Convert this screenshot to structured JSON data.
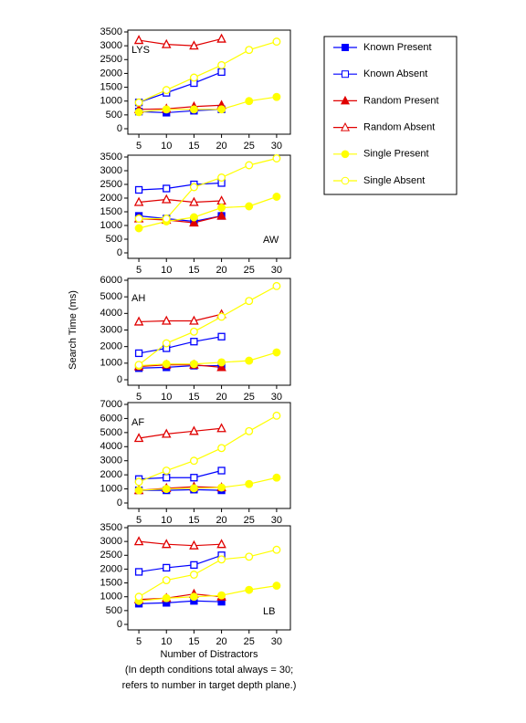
{
  "chart_data": [
    {
      "type": "line",
      "annotation": "LYS",
      "annotation_corner": "top-left",
      "x": [
        5,
        10,
        15,
        20,
        25,
        30
      ],
      "xlim": [
        3,
        32.5
      ],
      "xticks": [
        5,
        10,
        15,
        20,
        25,
        30
      ],
      "ylim": [
        0,
        3500
      ],
      "yticks": [
        0,
        500,
        1000,
        1500,
        2000,
        2500,
        3000,
        3500
      ],
      "series": [
        {
          "name": "Known Present",
          "color": "#0000ff",
          "marker": "square",
          "filled": true,
          "values": [
            620,
            580,
            650,
            700,
            null,
            null
          ]
        },
        {
          "name": "Known Absent",
          "color": "#0000ff",
          "marker": "square",
          "filled": false,
          "values": [
            950,
            1300,
            1650,
            2050,
            null,
            null
          ]
        },
        {
          "name": "Random Present",
          "color": "#e00000",
          "marker": "triangle",
          "filled": true,
          "values": [
            700,
            720,
            800,
            850,
            null,
            null
          ]
        },
        {
          "name": "Random Absent",
          "color": "#e00000",
          "marker": "triangle",
          "filled": false,
          "values": [
            3200,
            3050,
            3000,
            3250,
            null,
            null
          ]
        },
        {
          "name": "Single Present",
          "color": "#ffff00",
          "marker": "circle",
          "filled": true,
          "values": [
            600,
            700,
            700,
            700,
            1000,
            1150
          ]
        },
        {
          "name": "Single Absent",
          "color": "#ffff00",
          "marker": "circle",
          "filled": false,
          "values": [
            950,
            1400,
            1850,
            2300,
            2850,
            3150
          ]
        }
      ]
    },
    {
      "type": "line",
      "annotation": "AW",
      "annotation_corner": "bottom-right",
      "x": [
        5,
        10,
        15,
        20,
        25,
        30
      ],
      "xlim": [
        3,
        32.5
      ],
      "xticks": [
        5,
        10,
        15,
        20,
        25,
        30
      ],
      "ylim": [
        0,
        3500
      ],
      "yticks": [
        0,
        500,
        1000,
        1500,
        2000,
        2500,
        3000,
        3500
      ],
      "series": [
        {
          "name": "Known Present",
          "color": "#0000ff",
          "marker": "square",
          "filled": true,
          "values": [
            1350,
            1250,
            1150,
            1350,
            null,
            null
          ]
        },
        {
          "name": "Known Absent",
          "color": "#0000ff",
          "marker": "square",
          "filled": false,
          "values": [
            2300,
            2350,
            2500,
            2550,
            null,
            null
          ]
        },
        {
          "name": "Random Present",
          "color": "#e00000",
          "marker": "triangle",
          "filled": true,
          "values": [
            1250,
            1200,
            1100,
            1350,
            null,
            null
          ]
        },
        {
          "name": "Random Absent",
          "color": "#e00000",
          "marker": "triangle",
          "filled": false,
          "values": [
            1850,
            1950,
            1850,
            1900,
            null,
            null
          ]
        },
        {
          "name": "Single Present",
          "color": "#ffff00",
          "marker": "circle",
          "filled": true,
          "values": [
            900,
            1150,
            1300,
            1650,
            1700,
            2050
          ]
        },
        {
          "name": "Single Absent",
          "color": "#ffff00",
          "marker": "circle",
          "filled": false,
          "values": [
            1250,
            1250,
            2400,
            2750,
            3200,
            3450
          ]
        }
      ]
    },
    {
      "type": "line",
      "annotation": "AH",
      "annotation_corner": "top-left",
      "ylabel": "Search Time (ms)",
      "x": [
        5,
        10,
        15,
        20,
        25,
        30
      ],
      "xlim": [
        3,
        32.5
      ],
      "xticks": [
        5,
        10,
        15,
        20,
        25,
        30
      ],
      "ylim": [
        0,
        6000
      ],
      "yticks": [
        0,
        1000,
        2000,
        3000,
        4000,
        5000,
        6000
      ],
      "series": [
        {
          "name": "Known Present",
          "color": "#0000ff",
          "marker": "square",
          "filled": true,
          "values": [
            700,
            750,
            850,
            850,
            null,
            null
          ]
        },
        {
          "name": "Known Absent",
          "color": "#0000ff",
          "marker": "square",
          "filled": false,
          "values": [
            1600,
            1900,
            2300,
            2600,
            null,
            null
          ]
        },
        {
          "name": "Random Present",
          "color": "#e00000",
          "marker": "triangle",
          "filled": true,
          "values": [
            800,
            900,
            900,
            750,
            null,
            null
          ]
        },
        {
          "name": "Random Absent",
          "color": "#e00000",
          "marker": "triangle",
          "filled": false,
          "values": [
            3500,
            3550,
            3550,
            3950,
            null,
            null
          ]
        },
        {
          "name": "Single Present",
          "color": "#ffff00",
          "marker": "circle",
          "filled": true,
          "values": [
            850,
            950,
            950,
            1050,
            1150,
            1650
          ]
        },
        {
          "name": "Single Absent",
          "color": "#ffff00",
          "marker": "circle",
          "filled": false,
          "values": [
            900,
            2200,
            2900,
            3800,
            4750,
            5650
          ]
        }
      ]
    },
    {
      "type": "line",
      "annotation": "AF",
      "annotation_corner": "top-left",
      "x": [
        5,
        10,
        15,
        20,
        25,
        30
      ],
      "xlim": [
        3,
        32.5
      ],
      "xticks": [
        5,
        10,
        15,
        20,
        25,
        30
      ],
      "ylim": [
        0,
        7000
      ],
      "yticks": [
        0,
        1000,
        2000,
        3000,
        4000,
        5000,
        6000,
        7000
      ],
      "series": [
        {
          "name": "Known Present",
          "color": "#0000ff",
          "marker": "square",
          "filled": true,
          "values": [
            900,
            900,
            950,
            900,
            null,
            null
          ]
        },
        {
          "name": "Known Absent",
          "color": "#0000ff",
          "marker": "square",
          "filled": false,
          "values": [
            1700,
            1800,
            1800,
            2300,
            null,
            null
          ]
        },
        {
          "name": "Random Present",
          "color": "#e00000",
          "marker": "triangle",
          "filled": true,
          "values": [
            900,
            1050,
            1150,
            1100,
            null,
            null
          ]
        },
        {
          "name": "Random Absent",
          "color": "#e00000",
          "marker": "triangle",
          "filled": false,
          "values": [
            4600,
            4900,
            5100,
            5300,
            null,
            null
          ]
        },
        {
          "name": "Single Present",
          "color": "#ffff00",
          "marker": "circle",
          "filled": true,
          "values": [
            900,
            1000,
            1050,
            1100,
            1350,
            1800
          ]
        },
        {
          "name": "Single Absent",
          "color": "#ffff00",
          "marker": "circle",
          "filled": false,
          "values": [
            1500,
            2300,
            3000,
            3900,
            5100,
            6200
          ]
        }
      ]
    },
    {
      "type": "line",
      "annotation": "LB",
      "annotation_corner": "bottom-right",
      "xlabel": "Number of Distractors",
      "notes": [
        "(In depth conditions total always = 30;",
        "refers to number in target depth plane.)"
      ],
      "x": [
        5,
        10,
        15,
        20,
        25,
        30
      ],
      "xlim": [
        3,
        32.5
      ],
      "xticks": [
        5,
        10,
        15,
        20,
        25,
        30
      ],
      "ylim": [
        0,
        3500
      ],
      "yticks": [
        0,
        500,
        1000,
        1500,
        2000,
        2500,
        3000,
        3500
      ],
      "series": [
        {
          "name": "Known Present",
          "color": "#0000ff",
          "marker": "square",
          "filled": true,
          "values": [
            750,
            780,
            850,
            820,
            null,
            null
          ]
        },
        {
          "name": "Known Absent",
          "color": "#0000ff",
          "marker": "square",
          "filled": false,
          "values": [
            1900,
            2050,
            2150,
            2500,
            null,
            null
          ]
        },
        {
          "name": "Random Present",
          "color": "#e00000",
          "marker": "triangle",
          "filled": true,
          "values": [
            900,
            950,
            1100,
            1000,
            null,
            null
          ]
        },
        {
          "name": "Random Absent",
          "color": "#e00000",
          "marker": "triangle",
          "filled": false,
          "values": [
            3000,
            2900,
            2850,
            2900,
            null,
            null
          ]
        },
        {
          "name": "Single Present",
          "color": "#ffff00",
          "marker": "circle",
          "filled": true,
          "values": [
            850,
            950,
            1000,
            1050,
            1250,
            1400
          ]
        },
        {
          "name": "Single Absent",
          "color": "#ffff00",
          "marker": "circle",
          "filled": false,
          "values": [
            1000,
            1600,
            1800,
            2350,
            2450,
            2700
          ]
        }
      ]
    }
  ]
}
